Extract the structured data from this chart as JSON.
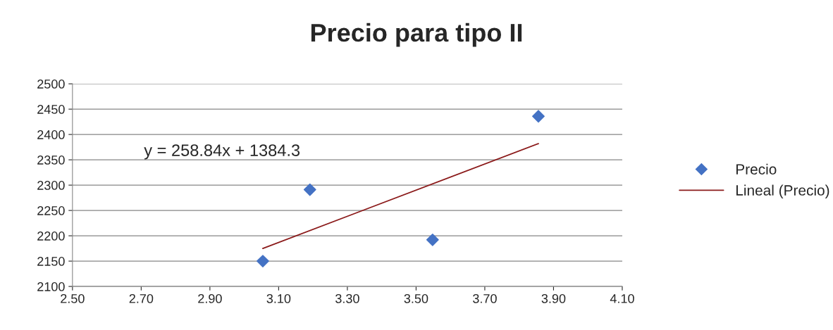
{
  "chart_data": {
    "type": "scatter",
    "title": "Precio para tipo II",
    "series": [
      {
        "name": "Precio",
        "color": "#4472c4",
        "marker": "diamond",
        "x": [
          3.054,
          3.191,
          3.548,
          3.856
        ],
        "values": [
          2150,
          2291,
          2192,
          2436
        ]
      },
      {
        "name": "Lineal (Precio)",
        "type": "line",
        "color": "#8b1a1a",
        "marker": "none",
        "line_style": "solid",
        "x": [
          3.054,
          3.856
        ],
        "values": [
          2175,
          2382
        ]
      }
    ],
    "annotations": [
      "y = 258.84x + 1384.3"
    ],
    "xlim": [
      2.5,
      4.1
    ],
    "xticks": [
      {
        "value": 2.5,
        "label": "2.50"
      },
      {
        "value": 2.7,
        "label": "2.70"
      },
      {
        "value": 2.9,
        "label": "2.90"
      },
      {
        "value": 3.1,
        "label": "3.10"
      },
      {
        "value": 3.3,
        "label": "3.30"
      },
      {
        "value": 3.5,
        "label": "3.50"
      },
      {
        "value": 3.7,
        "label": "3.70"
      },
      {
        "value": 3.9,
        "label": "3.90"
      },
      {
        "value": 4.1,
        "label": "4.10"
      }
    ],
    "ylim": [
      2100,
      2500
    ],
    "yticks": [
      2100,
      2150,
      2200,
      2250,
      2300,
      2350,
      2400,
      2450,
      2500
    ],
    "grid": "y",
    "legend": "right"
  }
}
